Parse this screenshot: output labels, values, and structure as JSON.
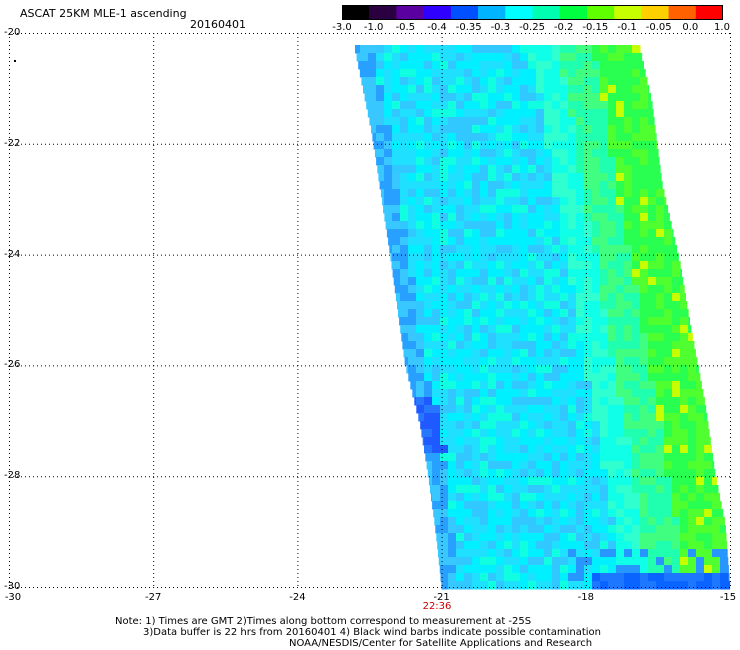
{
  "title": "ASCAT 25KM MLE-1 ascending",
  "date": "20160401",
  "colorbar": {
    "labels": [
      "-3.0",
      "-1.0",
      "-0.5",
      "-0.4",
      "-0.35",
      "-0.3",
      "-0.25",
      "-0.2",
      "-0.15",
      "-0.1",
      "-0.05",
      "0.0",
      "1.0"
    ],
    "colors": [
      "#000000",
      "#2a0040",
      "#5a00a0",
      "#3000ff",
      "#0050ff",
      "#00b4ff",
      "#00ffff",
      "#00ffb0",
      "#00ff40",
      "#60ff00",
      "#c8ff00",
      "#ffd000",
      "#ff6000",
      "#ff0000"
    ]
  },
  "map": {
    "lat_labels": [
      "-20",
      "-22",
      "-24",
      "-26",
      "-28",
      "-30"
    ],
    "lon_labels": [
      "-30",
      "-27",
      "-24",
      "-21",
      "-18",
      "-15"
    ],
    "time_label": "22:36"
  },
  "notes": {
    "line1": "Note: 1) Times are GMT 2)Times along bottom correspond to measurement at -25S",
    "line2": "3)Data buffer is 22 hrs from 20160401 4) Black wind barbs indicate possible contamination",
    "line3": "NOAA/NESDIS/Center for Satellite Applications and Research"
  }
}
